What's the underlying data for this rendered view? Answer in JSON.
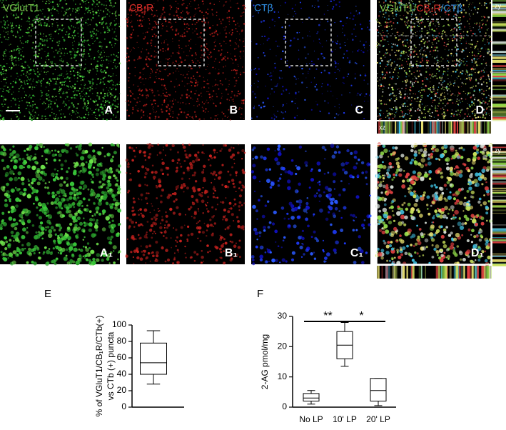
{
  "panels": {
    "titles": [
      "VGlutT1",
      "CB₁R",
      "CTβ"
    ],
    "d_title": [
      "VGluT1/",
      "CB₁R",
      "/CTβ"
    ],
    "letters": [
      "A",
      "B",
      "C",
      "D",
      "A₁",
      "B₁",
      "C₁",
      "D₁"
    ],
    "zy": [
      "zy",
      "zy"
    ],
    "xz": "xz"
  },
  "chart_data": [
    {
      "type": "box",
      "panel_label": "E",
      "y_label": [
        "% of VGluT1/CB₁R/CTb(+)",
        "vs CTb (+) puncta"
      ],
      "categories": [
        null
      ],
      "min": [
        28
      ],
      "q1": [
        40
      ],
      "median": [
        54
      ],
      "q3": [
        78
      ],
      "max": [
        93
      ],
      "ylim": [
        0,
        100
      ],
      "yticks": [
        0,
        20,
        40,
        60,
        80,
        100
      ],
      "color": "#000000"
    },
    {
      "type": "box",
      "panel_label": "F",
      "y_label": [
        "2-AG pmol/mg"
      ],
      "categories": [
        "No LP",
        "10' LP",
        "20' LP"
      ],
      "min": [
        1,
        13.5,
        0.5
      ],
      "q1": [
        2,
        16,
        2
      ],
      "median": [
        3,
        20.5,
        5.5
      ],
      "q3": [
        4.5,
        25,
        9.5
      ],
      "max": [
        5.5,
        28,
        9.5
      ],
      "ylim": [
        0,
        30
      ],
      "yticks": [
        0,
        10,
        20,
        30
      ],
      "annotations": [
        "**",
        "*"
      ],
      "color": "#000000"
    }
  ]
}
